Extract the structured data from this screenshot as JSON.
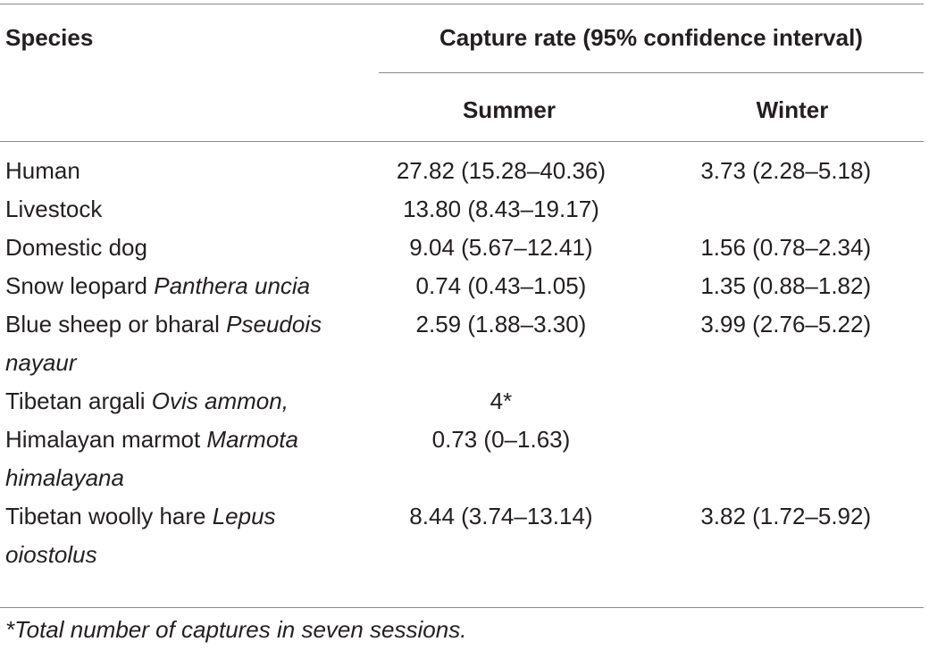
{
  "table": {
    "header": {
      "species": "Species",
      "capture_rate": "Capture rate (95% confidence interval)",
      "summer": "Summer",
      "winter": "Winter"
    },
    "rows": [
      {
        "common": "Human",
        "scientific": "",
        "summer": "27.82 (15.28–40.36)",
        "winter": "3.73 (2.28–5.18)"
      },
      {
        "common": "Livestock",
        "scientific": "",
        "summer": "13.80 (8.43–19.17)",
        "winter": ""
      },
      {
        "common": "Domestic dog",
        "scientific": "",
        "summer": "9.04 (5.67–12.41)",
        "winter": "1.56 (0.78–2.34)"
      },
      {
        "common": "Snow leopard ",
        "scientific": "Panthera uncia",
        "summer": "0.74 (0.43–1.05)",
        "winter": "1.35 (0.88–1.82)"
      },
      {
        "common": "Blue sheep or bharal ",
        "scientific": "Pseudois nayaur",
        "summer": "2.59 (1.88–3.30)",
        "winter": "3.99 (2.76–5.22)"
      },
      {
        "common": "Tibetan argali ",
        "scientific": "Ovis ammon,",
        "summer": "4*",
        "winter": ""
      },
      {
        "common": "Himalayan marmot ",
        "scientific": "Marmota himalayana",
        "summer": "0.73 (0–1.63)",
        "winter": ""
      },
      {
        "common": "Tibetan woolly hare ",
        "scientific": "Lepus oiostolus",
        "summer": "8.44 (3.74–13.14)",
        "winter": "3.82 (1.72–5.92)"
      }
    ],
    "footnote": "*Total number of captures in seven sessions."
  }
}
